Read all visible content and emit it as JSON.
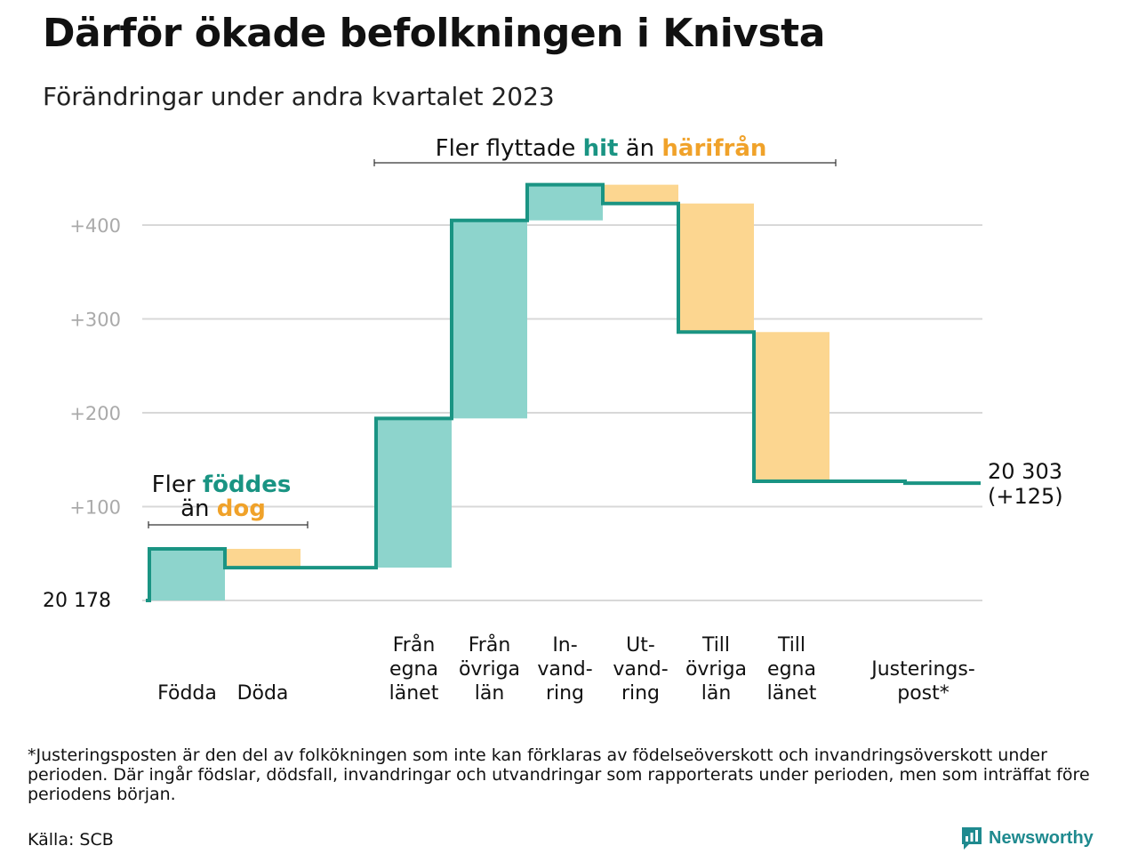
{
  "title": "Därför ökade befolkningen i Knivsta",
  "subtitle": "Förändringar under andra kvartalet 2023",
  "chart_data": {
    "type": "bar",
    "start_value": "20  178",
    "ylim": [
      0,
      450
    ],
    "yticks": [
      {
        "value": 100,
        "label": "+100"
      },
      {
        "value": 200,
        "label": "+200"
      },
      {
        "value": 300,
        "label": "+300"
      },
      {
        "value": 400,
        "label": "+400"
      }
    ],
    "grid": true,
    "steps": [
      {
        "label": [
          "Födda"
        ],
        "from": 0,
        "to": 55,
        "kind": "gain"
      },
      {
        "label": [
          "Döda"
        ],
        "from": 55,
        "to": 35,
        "kind": "loss"
      },
      {
        "label": [],
        "from": 35,
        "to": 35,
        "kind": "none"
      },
      {
        "label": [
          "Från",
          "egna",
          "länet"
        ],
        "from": 35,
        "to": 194,
        "kind": "gain"
      },
      {
        "label": [
          "Från",
          "övriga",
          "län"
        ],
        "from": 194,
        "to": 405,
        "kind": "gain"
      },
      {
        "label": [
          "In-",
          "vand-",
          "ring"
        ],
        "from": 405,
        "to": 443,
        "kind": "gain"
      },
      {
        "label": [
          "Ut-",
          "vand-",
          "ring"
        ],
        "from": 443,
        "to": 423,
        "kind": "loss"
      },
      {
        "label": [
          "Till",
          "övriga",
          "län"
        ],
        "from": 423,
        "to": 286,
        "kind": "loss"
      },
      {
        "label": [
          "Till",
          "egna",
          "länet"
        ],
        "from": 286,
        "to": 127,
        "kind": "loss"
      },
      {
        "label": [],
        "from": 127,
        "to": 127,
        "kind": "none"
      },
      {
        "label": [
          "Justerings-",
          "post*"
        ],
        "from": 127,
        "to": 125,
        "kind": "adjust"
      }
    ],
    "end_label": [
      "20 303",
      "(+125)"
    ],
    "annotations": {
      "births": {
        "line1": [
          "Fler ",
          "föddes"
        ],
        "line2": [
          "än ",
          "dog"
        ]
      },
      "migration": [
        "Fler flyttade ",
        "hit",
        " än ",
        "härifrån"
      ]
    },
    "colors": {
      "gain": "#8dd4cc",
      "loss": "#fcd690",
      "line": "#1a9483",
      "gain_text": "#1a9483",
      "loss_text": "#f0a22a",
      "grid": "#d8d8d8",
      "tick_text": "#aaaaaa"
    }
  },
  "footnote": "*Justeringsposten är den del av folkökningen som inte kan förklaras av födelseöverskott och invandringsöverskott under perioden. Där ingår födslar, dödsfall, invandringar och utvandringar som rapporterats under perioden, men som inträffat före periodens början.",
  "source": "Källa: SCB",
  "brand": {
    "name": "Newsworthy",
    "icon": "newsworthy-logo-icon"
  }
}
